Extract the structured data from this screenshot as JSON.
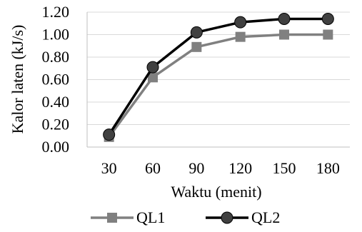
{
  "chart_data": {
    "type": "line",
    "xlabel": "Waktu (menit)",
    "ylabel": "Kalor laten (kJ/s)",
    "categories": [
      "30",
      "60",
      "90",
      "120",
      "150",
      "180"
    ],
    "y_ticks": [
      "0.00",
      "0.20",
      "0.40",
      "0.60",
      "0.80",
      "1.00",
      "1.20"
    ],
    "ylim": [
      0,
      1.2
    ],
    "grid": "horizontal",
    "legend_position": "bottom",
    "series": [
      {
        "name": "QL1",
        "values": [
          0.09,
          0.62,
          0.89,
          0.98,
          1.0,
          1.0
        ],
        "color": "#808080",
        "marker": "square"
      },
      {
        "name": "QL2",
        "values": [
          0.11,
          0.71,
          1.02,
          1.11,
          1.14,
          1.14
        ],
        "color": "#000000",
        "marker": "circle"
      }
    ]
  }
}
